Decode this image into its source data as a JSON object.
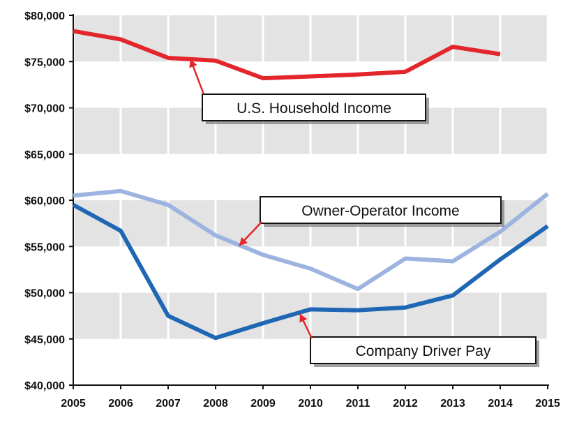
{
  "chart_data": {
    "type": "line",
    "title": "",
    "xlabel": "",
    "ylabel": "",
    "x": [
      2005,
      2006,
      2007,
      2008,
      2009,
      2010,
      2011,
      2012,
      2013,
      2014,
      2015
    ],
    "x_tick_labels": [
      "2005",
      "2006",
      "2007",
      "2008",
      "2009",
      "2010",
      "2011",
      "2012",
      "2013",
      "2014",
      "2015"
    ],
    "ylim": [
      40000,
      80000
    ],
    "y_ticks": [
      40000,
      45000,
      50000,
      55000,
      60000,
      65000,
      70000,
      75000,
      80000
    ],
    "y_tick_labels": [
      "$40,000",
      "$45,000",
      "$50,000",
      "$55,000",
      "$60,000",
      "$65,000",
      "$70,000",
      "$75,000",
      "$80,000"
    ],
    "grid": "alternating horizontal bands, vertical gridlines",
    "series": [
      {
        "name": "U.S. Household Income",
        "color": "#e3262b",
        "values": [
          78300,
          77400,
          75400,
          75100,
          73200,
          73400,
          73600,
          73900,
          76600,
          75800,
          null
        ]
      },
      {
        "name": "Owner-Operator Income",
        "color": "#9db4e0",
        "values": [
          60500,
          61000,
          59500,
          56200,
          54100,
          52600,
          50400,
          53700,
          53400,
          56600,
          60700
        ]
      },
      {
        "name": "Company Driver Pay",
        "color": "#1f67b4",
        "values": [
          59500,
          56700,
          47500,
          45100,
          46700,
          48200,
          48100,
          48400,
          49700,
          53600,
          57200
        ]
      }
    ],
    "annotations": [
      {
        "text": "U.S. Household Income",
        "series": 0,
        "points_to_x": 2007.5
      },
      {
        "text": "Owner-Operator Income",
        "series": 1,
        "points_to_x": 2008.6
      },
      {
        "text": "Company Driver Pay",
        "series": 2,
        "points_to_x": 2010
      }
    ]
  }
}
